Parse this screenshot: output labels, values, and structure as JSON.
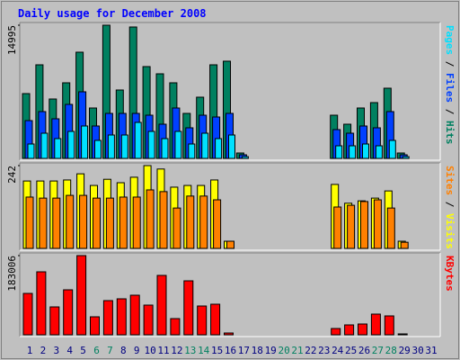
{
  "chart_data": [
    {
      "type": "bar",
      "title": "Daily usage for December 2008",
      "ylim": [
        0,
        14995
      ],
      "yticks": [
        14995
      ],
      "legend_separator": " / ",
      "series": [
        {
          "name": "Hits",
          "color": "#008060",
          "values": [
            7295,
            10537,
            6687,
            8511,
            11956,
            5674,
            14995,
            7700,
            14793,
            10335,
            9524,
            8511,
            5066,
            6890,
            10537,
            10943,
            608,
            0,
            0,
            0,
            0,
            0,
            0,
            4863,
            3850,
            5674,
            6282,
            7903,
            608,
            0,
            0
          ]
        },
        {
          "name": "Files",
          "color": "#0040ff",
          "values": [
            4255,
            5269,
            4458,
            6079,
            7498,
            3648,
            5066,
            5066,
            5066,
            4863,
            3850,
            5674,
            3445,
            4863,
            4661,
            5066,
            405,
            0,
            0,
            0,
            0,
            0,
            0,
            3242,
            2837,
            3648,
            3445,
            5269,
            405,
            0,
            0
          ]
        },
        {
          "name": "Pages",
          "color": "#00e0ff",
          "values": [
            1621,
            2837,
            2229,
            3040,
            3648,
            2026,
            2634,
            2634,
            4053,
            3040,
            2229,
            3040,
            1621,
            2837,
            2229,
            2634,
            203,
            0,
            0,
            0,
            0,
            0,
            0,
            1418,
            1418,
            1621,
            1418,
            2026,
            203,
            0,
            0
          ]
        }
      ]
    },
    {
      "type": "bar",
      "ylim": [
        0,
        242
      ],
      "yticks": [
        242
      ],
      "legend_separator": " / ",
      "series": [
        {
          "name": "Visits",
          "color": "#ffff00",
          "values": [
            197,
            197,
            197,
            200,
            218,
            184,
            202,
            192,
            208,
            242,
            232,
            179,
            184,
            184,
            200,
            21,
            0,
            0,
            0,
            0,
            0,
            0,
            0,
            187,
            132,
            139,
            147,
            168,
            21,
            0,
            0
          ]
        },
        {
          "name": "Sites",
          "color": "#ff8000",
          "values": [
            150,
            147,
            147,
            155,
            155,
            147,
            147,
            150,
            150,
            171,
            166,
            118,
            153,
            153,
            142,
            21,
            0,
            0,
            0,
            0,
            0,
            0,
            0,
            121,
            126,
            137,
            142,
            118,
            18,
            0,
            0
          ]
        }
      ]
    },
    {
      "type": "bar",
      "ylim": [
        0,
        183006
      ],
      "yticks": [
        183006
      ],
      "categories": [
        "1",
        "2",
        "3",
        "4",
        "5",
        "6",
        "7",
        "8",
        "9",
        "10",
        "11",
        "12",
        "13",
        "14",
        "15",
        "16",
        "17",
        "18",
        "19",
        "20",
        "21",
        "22",
        "23",
        "24",
        "25",
        "26",
        "27",
        "28",
        "29",
        "30",
        "31"
      ],
      "weekend_categories": [
        "6",
        "7",
        "13",
        "14",
        "20",
        "21",
        "27",
        "28"
      ],
      "weekend_color": "#008060",
      "label_color": "#000080",
      "series": [
        {
          "name": "KBytes",
          "color": "#ff0000",
          "values": [
            95639,
            145550,
            64460,
            103970,
            183006,
            41590,
            79010,
            83170,
            91490,
            68620,
            137250,
            37430,
            124760,
            66540,
            70700,
            4160,
            0,
            0,
            0,
            0,
            0,
            0,
            0,
            14560,
            22870,
            24950,
            47820,
            43670,
            2080,
            0,
            0
          ]
        }
      ]
    }
  ]
}
